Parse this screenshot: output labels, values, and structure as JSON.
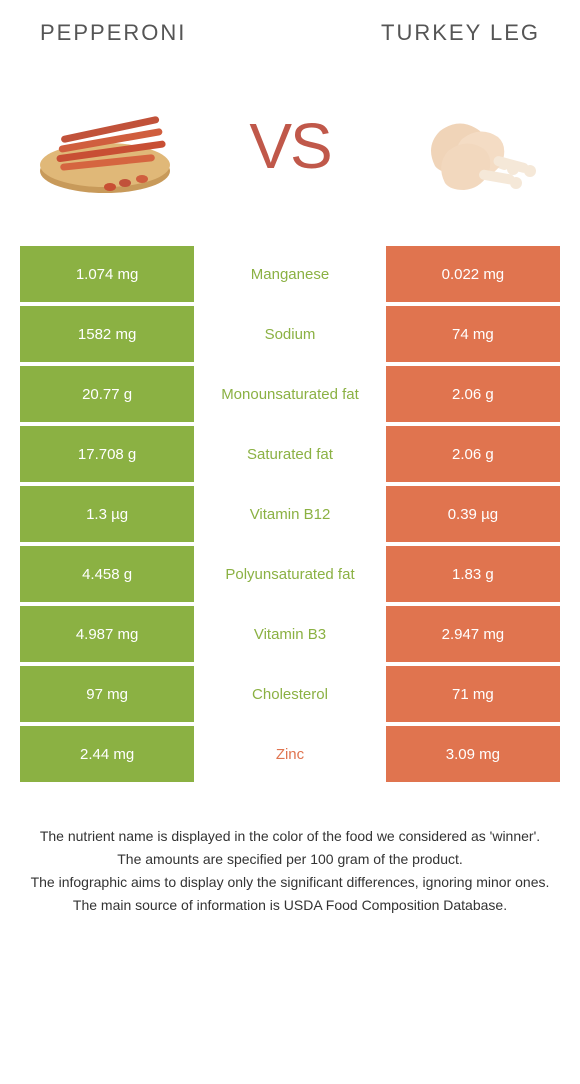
{
  "colors": {
    "green": "#8bb143",
    "orange": "#e0744f",
    "text_green": "#8bb143",
    "text_orange": "#e0744f"
  },
  "header": {
    "left_title": "PEPPERONI",
    "right_title": "TURKEY LEG",
    "vs": "VS"
  },
  "rows": [
    {
      "left": "1.074 mg",
      "label": "Manganese",
      "right": "0.022 mg",
      "winner": "left"
    },
    {
      "left": "1582 mg",
      "label": "Sodium",
      "right": "74 mg",
      "winner": "left"
    },
    {
      "left": "20.77 g",
      "label": "Monounsaturated fat",
      "right": "2.06 g",
      "winner": "left"
    },
    {
      "left": "17.708 g",
      "label": "Saturated fat",
      "right": "2.06 g",
      "winner": "left"
    },
    {
      "left": "1.3 µg",
      "label": "Vitamin B12",
      "right": "0.39 µg",
      "winner": "left"
    },
    {
      "left": "4.458 g",
      "label": "Polyunsaturated fat",
      "right": "1.83 g",
      "winner": "left"
    },
    {
      "left": "4.987 mg",
      "label": "Vitamin B3",
      "right": "2.947 mg",
      "winner": "left"
    },
    {
      "left": "97 mg",
      "label": "Cholesterol",
      "right": "71 mg",
      "winner": "left"
    },
    {
      "left": "2.44 mg",
      "label": "Zinc",
      "right": "3.09 mg",
      "winner": "right"
    }
  ],
  "footer": {
    "line1": "The nutrient name is displayed in the color of the food we considered as 'winner'.",
    "line2": "The amounts are specified per 100 gram of the product.",
    "line3": "The infographic aims to display only the significant differences, ignoring minor ones.",
    "line4": "The main source of information is USDA Food Composition Database."
  }
}
